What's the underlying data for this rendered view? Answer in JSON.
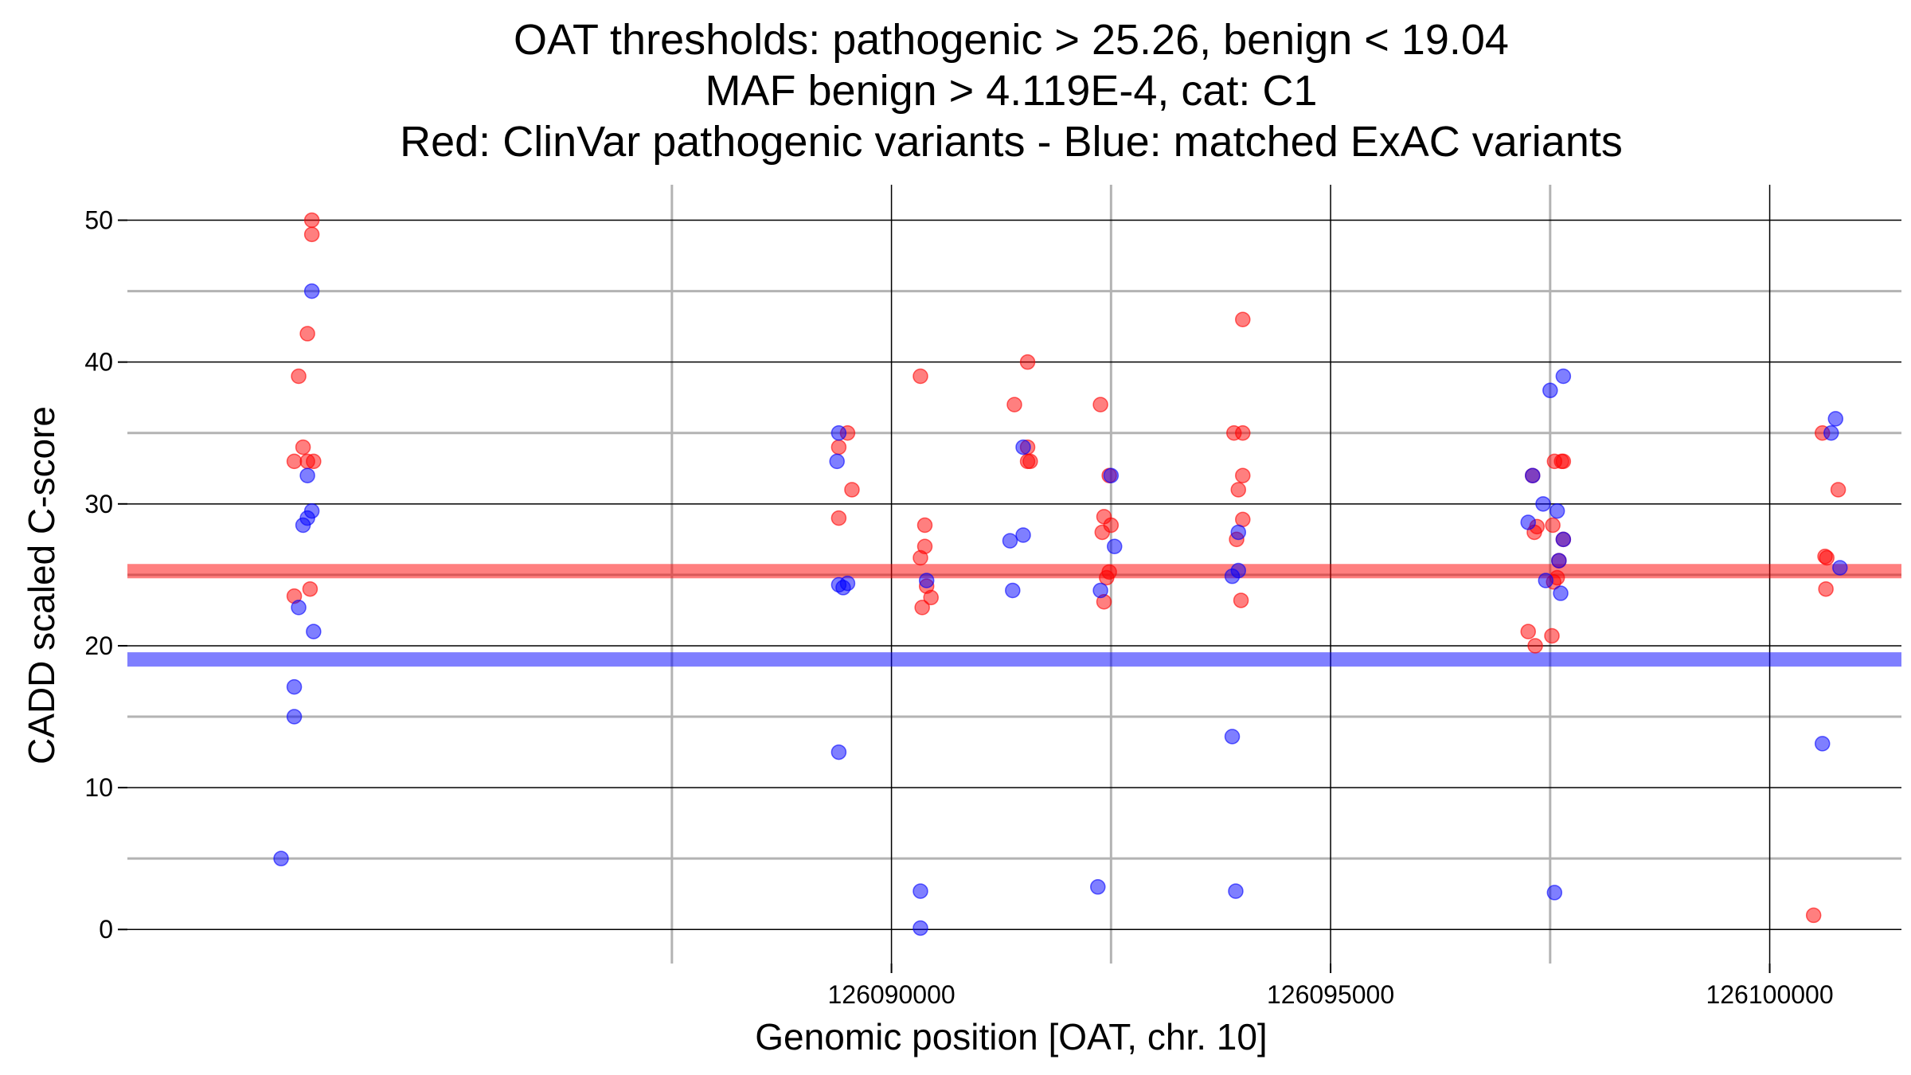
{
  "chart_data": {
    "type": "scatter",
    "title_lines": [
      "OAT thresholds: pathogenic > 25.26, benign < 19.04",
      "MAF benign > 4.119E-4, cat: C1",
      "Red: ClinVar pathogenic variants - Blue: matched ExAC variants"
    ],
    "xlabel": "Genomic position [OAT, chr. 10]",
    "ylabel": "CADD scaled C-score",
    "xlim": [
      126081300,
      126101500
    ],
    "ylim": [
      -2.4,
      52.5
    ],
    "x_ticks": [
      126090000,
      126095000,
      126100000
    ],
    "x_tick_labels": [
      "126090000",
      "126095000",
      "126100000"
    ],
    "x_minor_gridlines": [
      126087500,
      126092500,
      126097500
    ],
    "y_ticks": [
      0,
      10,
      20,
      30,
      40,
      50
    ],
    "y_tick_labels": [
      "0",
      "10",
      "20",
      "30",
      "40",
      "50"
    ],
    "y_minor_gridlines": [
      5,
      15,
      25,
      35,
      45
    ],
    "grid": true,
    "thresholds": [
      {
        "name": "pathogenic",
        "value": 25.26,
        "color": "#ff0000"
      },
      {
        "name": "benign",
        "value": 19.04,
        "color": "#0000ff"
      }
    ],
    "series": [
      {
        "name": "ClinVar pathogenic variants",
        "color": "#ff0000",
        "points": [
          {
            "x": 126083400,
            "y": 50
          },
          {
            "x": 126083400,
            "y": 49
          },
          {
            "x": 126083350,
            "y": 42
          },
          {
            "x": 126083250,
            "y": 39
          },
          {
            "x": 126083300,
            "y": 34
          },
          {
            "x": 126083200,
            "y": 33
          },
          {
            "x": 126083350,
            "y": 33
          },
          {
            "x": 126083420,
            "y": 33
          },
          {
            "x": 126083200,
            "y": 23.5
          },
          {
            "x": 126083380,
            "y": 24
          },
          {
            "x": 126089400,
            "y": 34
          },
          {
            "x": 126089500,
            "y": 35
          },
          {
            "x": 126089550,
            "y": 31
          },
          {
            "x": 126089400,
            "y": 29
          },
          {
            "x": 126090330,
            "y": 39
          },
          {
            "x": 126090380,
            "y": 28.5
          },
          {
            "x": 126090380,
            "y": 27
          },
          {
            "x": 126090330,
            "y": 26.2
          },
          {
            "x": 126090400,
            "y": 24.2
          },
          {
            "x": 126090450,
            "y": 23.4
          },
          {
            "x": 126090350,
            "y": 22.7
          },
          {
            "x": 126091550,
            "y": 40
          },
          {
            "x": 126091400,
            "y": 37
          },
          {
            "x": 126091550,
            "y": 34
          },
          {
            "x": 126091550,
            "y": 33
          },
          {
            "x": 126091580,
            "y": 33
          },
          {
            "x": 126092380,
            "y": 37
          },
          {
            "x": 126092480,
            "y": 32
          },
          {
            "x": 126092420,
            "y": 29.1
          },
          {
            "x": 126092500,
            "y": 28.5
          },
          {
            "x": 126092400,
            "y": 28
          },
          {
            "x": 126092480,
            "y": 25.2
          },
          {
            "x": 126092450,
            "y": 24.8
          },
          {
            "x": 126092420,
            "y": 23.1
          },
          {
            "x": 126094000,
            "y": 43
          },
          {
            "x": 126093900,
            "y": 35
          },
          {
            "x": 126094000,
            "y": 35
          },
          {
            "x": 126094000,
            "y": 32
          },
          {
            "x": 126093950,
            "y": 31
          },
          {
            "x": 126094000,
            "y": 28.9
          },
          {
            "x": 126093930,
            "y": 27.5
          },
          {
            "x": 126093980,
            "y": 23.2
          },
          {
            "x": 126097300,
            "y": 32
          },
          {
            "x": 126097550,
            "y": 33
          },
          {
            "x": 126097630,
            "y": 33
          },
          {
            "x": 126097650,
            "y": 33
          },
          {
            "x": 126097350,
            "y": 28.4
          },
          {
            "x": 126097320,
            "y": 28
          },
          {
            "x": 126097530,
            "y": 28.5
          },
          {
            "x": 126097650,
            "y": 27.5
          },
          {
            "x": 126097600,
            "y": 26
          },
          {
            "x": 126097580,
            "y": 24.8
          },
          {
            "x": 126097540,
            "y": 24.5
          },
          {
            "x": 126097250,
            "y": 21
          },
          {
            "x": 126097520,
            "y": 20.7
          },
          {
            "x": 126097330,
            "y": 20
          },
          {
            "x": 126100600,
            "y": 35
          },
          {
            "x": 126100780,
            "y": 31
          },
          {
            "x": 126100630,
            "y": 26.3
          },
          {
            "x": 126100650,
            "y": 26.2
          },
          {
            "x": 126100640,
            "y": 24
          },
          {
            "x": 126100500,
            "y": 1
          }
        ]
      },
      {
        "name": "matched ExAC variants",
        "color": "#0000ff",
        "points": [
          {
            "x": 126083400,
            "y": 45
          },
          {
            "x": 126083350,
            "y": 32
          },
          {
            "x": 126083400,
            "y": 29.5
          },
          {
            "x": 126083350,
            "y": 29
          },
          {
            "x": 126083300,
            "y": 28.5
          },
          {
            "x": 126083250,
            "y": 22.7
          },
          {
            "x": 126083420,
            "y": 21
          },
          {
            "x": 126083200,
            "y": 17.1
          },
          {
            "x": 126083200,
            "y": 15
          },
          {
            "x": 126083050,
            "y": 5
          },
          {
            "x": 126089400,
            "y": 35
          },
          {
            "x": 126089380,
            "y": 33
          },
          {
            "x": 126089400,
            "y": 24.3
          },
          {
            "x": 126089450,
            "y": 24.1
          },
          {
            "x": 126089500,
            "y": 24.4
          },
          {
            "x": 126089400,
            "y": 12.5
          },
          {
            "x": 126090400,
            "y": 24.6
          },
          {
            "x": 126090330,
            "y": 2.7
          },
          {
            "x": 126090330,
            "y": 0.1
          },
          {
            "x": 126091500,
            "y": 34
          },
          {
            "x": 126091350,
            "y": 27.4
          },
          {
            "x": 126091500,
            "y": 27.8
          },
          {
            "x": 126091380,
            "y": 23.9
          },
          {
            "x": 126092500,
            "y": 32
          },
          {
            "x": 126092540,
            "y": 27
          },
          {
            "x": 126092380,
            "y": 23.9
          },
          {
            "x": 126092350,
            "y": 3
          },
          {
            "x": 126093950,
            "y": 28
          },
          {
            "x": 126093950,
            "y": 25.3
          },
          {
            "x": 126093880,
            "y": 24.9
          },
          {
            "x": 126093880,
            "y": 13.6
          },
          {
            "x": 126093920,
            "y": 2.7
          },
          {
            "x": 126097650,
            "y": 39
          },
          {
            "x": 126097500,
            "y": 38
          },
          {
            "x": 126097300,
            "y": 32
          },
          {
            "x": 126097420,
            "y": 30
          },
          {
            "x": 126097580,
            "y": 29.5
          },
          {
            "x": 126097250,
            "y": 28.7
          },
          {
            "x": 126097650,
            "y": 27.5
          },
          {
            "x": 126097600,
            "y": 26
          },
          {
            "x": 126097450,
            "y": 24.6
          },
          {
            "x": 126097620,
            "y": 23.7
          },
          {
            "x": 126097550,
            "y": 2.6
          },
          {
            "x": 126100750,
            "y": 36
          },
          {
            "x": 126100700,
            "y": 35
          },
          {
            "x": 126100800,
            "y": 25.5
          },
          {
            "x": 126100600,
            "y": 13.1
          }
        ]
      }
    ]
  }
}
